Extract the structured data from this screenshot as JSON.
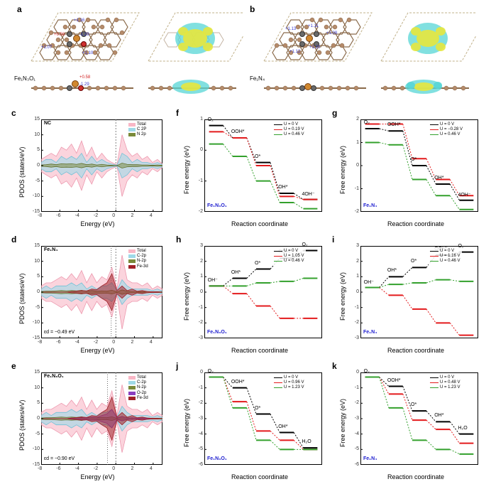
{
  "layout": {
    "figure_width": 692,
    "figure_height": 688,
    "background": "#ffffff",
    "panel_label_fontsize": 12,
    "axis_label_fontsize": 9,
    "tick_fontsize": 7
  },
  "global_colors": {
    "black": "#000000",
    "red": "#e31a1c",
    "green": "#33a02c",
    "blue": "#1f5fb8",
    "pink_fill": "#f9b7c6",
    "cyan_fill": "#9fd9e8",
    "olive_fill": "#7a8a3a",
    "purple": "#8a3fbf",
    "maroon": "#a02028"
  },
  "panel_a": {
    "label": "a",
    "model": "Fe₁N₃O₁",
    "charges": [
      {
        "v": "+1.16",
        "color": "#3a3ad0"
      },
      {
        "v": "+0.58",
        "color": "#d02020"
      },
      {
        "v": "-1.29",
        "color": "#3a3ad0"
      },
      {
        "v": "+1.07",
        "color": "#3a3ad0"
      },
      {
        "v": "+1.10",
        "color": "#3a3ad0"
      }
    ],
    "side_charges": [
      {
        "v": "+0.58",
        "color": "#d02020"
      },
      {
        "v": "-1.29",
        "color": "#3a3ad0"
      }
    ],
    "atom_colors": {
      "C": "#b58b6b",
      "N": "#6a6a6a",
      "O": "#d03030",
      "Fe": "#d08830"
    },
    "cdd_colors": {
      "pos": "#e7e73d",
      "neg": "#57d6d6"
    }
  },
  "panel_b": {
    "label": "b",
    "model": "Fe₁N₄",
    "charges": [
      {
        "v": "+1.13",
        "color": "#3a3ad0"
      },
      {
        "v": "+1.11",
        "color": "#3a3ad0"
      },
      {
        "v": "+1.09",
        "color": "#3a3ad0"
      },
      {
        "v": "+1.20",
        "color": "#3a3ad0"
      },
      {
        "v": "+1.12",
        "color": "#3a3ad0"
      }
    ],
    "atom_colors": {
      "C": "#b58b6b",
      "N": "#6a6a6a",
      "Fe": "#d08830"
    },
    "cdd_colors": {
      "pos": "#e7e73d",
      "neg": "#57d6d6"
    }
  },
  "panel_c": {
    "label": "c",
    "title": "NC",
    "xlabel": "Energy (eV)",
    "ylabel": "PDOS (states/eV)",
    "xlim": [
      -8,
      5
    ],
    "xtick_step": 2,
    "ylim": [
      -15,
      15
    ],
    "ytick_step": 5,
    "legend": [
      {
        "name": "Total",
        "color": "#f9b7c6"
      },
      {
        "name": "C 2P",
        "color": "#9fd9e8"
      },
      {
        "name": "N 2p",
        "color": "#7a8a3a"
      }
    ],
    "curves": {
      "Total_up": [
        2,
        3,
        4,
        3,
        6,
        5,
        7,
        4,
        8,
        3,
        6,
        2,
        4,
        2,
        1,
        0.2,
        10,
        5,
        3,
        4,
        2,
        3,
        1,
        2,
        0.5
      ],
      "Total_dn": [
        -2,
        -3,
        -4,
        -3,
        -6,
        -5,
        -7,
        -4,
        -8,
        -3,
        -6,
        -2,
        -4,
        -2,
        -1,
        -0.2,
        -10,
        -5,
        -3,
        -4,
        -2,
        -3,
        -1,
        -2,
        -0.5
      ],
      "C_up": [
        1,
        2,
        2,
        1,
        3,
        2,
        3,
        2,
        4,
        1,
        3,
        1,
        2,
        1,
        0.5,
        0.1,
        4,
        3,
        1,
        2,
        1,
        1,
        0.5,
        1,
        0.3
      ],
      "C_dn": [
        -1,
        -2,
        -2,
        -1,
        -3,
        -2,
        -3,
        -2,
        -4,
        -1,
        -3,
        -1,
        -2,
        -1,
        -0.5,
        -0.1,
        -4,
        -3,
        -1,
        -2,
        -1,
        -1,
        -0.5,
        -1,
        -0.3
      ],
      "N_up": [
        0.2,
        0.3,
        0.5,
        0.3,
        0.6,
        0.5,
        0.6,
        0.4,
        0.7,
        0.3,
        0.5,
        0.2,
        0.4,
        0.2,
        0.1,
        0,
        0.8,
        0.4,
        0.3,
        0.3,
        0.2,
        0.2,
        0.1,
        0.2,
        0.1
      ],
      "N_dn": [
        -0.2,
        -0.3,
        -0.5,
        -0.3,
        -0.6,
        -0.5,
        -0.6,
        -0.4,
        -0.7,
        -0.3,
        -0.5,
        -0.2,
        -0.4,
        -0.2,
        -0.1,
        0,
        -0.8,
        -0.4,
        -0.3,
        -0.3,
        -0.2,
        -0.2,
        -0.1,
        -0.2,
        -0.1
      ]
    },
    "x_samples": [
      -8,
      -7.46,
      -6.92,
      -6.38,
      -5.83,
      -5.29,
      -4.75,
      -4.21,
      -3.67,
      -3.12,
      -2.58,
      -2.04,
      -1.5,
      -0.96,
      -0.42,
      0.12,
      0.67,
      1.21,
      1.75,
      2.29,
      2.83,
      3.38,
      3.92,
      4.46,
      5
    ]
  },
  "panel_d": {
    "label": "d",
    "title": "Fe₁N₄",
    "xlabel": "Energy (eV)",
    "ylabel": "PDOS (states/eV)",
    "xlim": [
      -8,
      5
    ],
    "xtick_step": 2,
    "ylim": [
      -15,
      15
    ],
    "ytick_step": 5,
    "ed_note": "εd = −0.49 eV",
    "ed_line_x": -0.49,
    "legend": [
      {
        "name": "Total",
        "color": "#f9b7c6"
      },
      {
        "name": "C-2p",
        "color": "#9fd9e8"
      },
      {
        "name": "N-2p",
        "color": "#7a8a3a"
      },
      {
        "name": "Fe-3d",
        "color": "#a02028"
      }
    ],
    "curves": {
      "Total_up": [
        2,
        3,
        3,
        4,
        5,
        4,
        6,
        4,
        7,
        3,
        6,
        3,
        5,
        4,
        8,
        1,
        12,
        4,
        3,
        3,
        2,
        3,
        1,
        2,
        1
      ],
      "Total_dn": [
        -2,
        -3,
        -3,
        -4,
        -5,
        -4,
        -6,
        -4,
        -7,
        -3,
        -6,
        -3,
        -5,
        -4,
        -8,
        -1,
        -12,
        -4,
        -3,
        -3,
        -2,
        -3,
        -1,
        -2,
        -1
      ],
      "C_up": [
        1,
        2,
        1,
        2,
        2,
        2,
        3,
        2,
        3,
        1,
        2,
        1,
        2,
        2,
        3,
        0.5,
        4,
        2,
        1,
        1,
        1,
        1,
        0.5,
        1,
        0.3
      ],
      "C_dn": [
        -1,
        -2,
        -1,
        -2,
        -2,
        -2,
        -3,
        -2,
        -3,
        -1,
        -2,
        -1,
        -2,
        -2,
        -3,
        -0.5,
        -4,
        -2,
        -1,
        -1,
        -1,
        -1,
        -0.5,
        -1,
        -0.3
      ],
      "N_up": [
        0.2,
        0.3,
        0.3,
        0.4,
        0.5,
        0.4,
        0.5,
        0.4,
        0.6,
        0.3,
        0.5,
        0.3,
        0.4,
        0.3,
        0.6,
        0.1,
        0.7,
        0.3,
        0.2,
        0.2,
        0.2,
        0.2,
        0.1,
        0.1,
        0.1
      ],
      "N_dn": [
        -0.2,
        -0.3,
        -0.3,
        -0.4,
        -0.5,
        -0.4,
        -0.5,
        -0.4,
        -0.6,
        -0.3,
        -0.5,
        -0.3,
        -0.4,
        -0.3,
        -0.6,
        -0.1,
        -0.7,
        -0.3,
        -0.2,
        -0.2,
        -0.2,
        -0.2,
        -0.1,
        -0.1,
        -0.1
      ],
      "Fe_up": [
        0,
        0,
        0,
        0,
        0,
        0,
        0.2,
        0.3,
        0.5,
        0.4,
        1,
        0.8,
        2,
        3,
        6,
        0.5,
        2,
        0.5,
        1,
        0.3,
        0.5,
        0.2,
        0.1,
        0.1,
        0
      ],
      "Fe_dn": [
        0,
        0,
        0,
        0,
        0,
        0,
        -0.2,
        -0.3,
        -0.5,
        -0.4,
        -1,
        -0.8,
        -2,
        -3,
        -6,
        -0.5,
        -2,
        -0.5,
        -1,
        -0.3,
        -0.5,
        -0.2,
        -0.1,
        -0.1,
        0
      ]
    },
    "x_samples": [
      -8,
      -7.46,
      -6.92,
      -6.38,
      -5.83,
      -5.29,
      -4.75,
      -4.21,
      -3.67,
      -3.12,
      -2.58,
      -2.04,
      -1.5,
      -0.96,
      -0.42,
      0.12,
      0.67,
      1.21,
      1.75,
      2.29,
      2.83,
      3.38,
      3.92,
      4.46,
      5
    ]
  },
  "panel_e": {
    "label": "e",
    "title": "Fe₁N₃O₁",
    "xlabel": "Energy (eV)",
    "ylabel": "PDOS (states/eV)",
    "xlim": [
      -8,
      5
    ],
    "xtick_step": 2,
    "ylim": [
      -15,
      15
    ],
    "ytick_step": 5,
    "ed_note": "εd = −0.90 eV",
    "ed_line_x": -0.9,
    "legend": [
      {
        "name": "Total",
        "color": "#f9b7c6"
      },
      {
        "name": "C-2p",
        "color": "#9fd9e8"
      },
      {
        "name": "N-2p",
        "color": "#7a8a3a"
      },
      {
        "name": "O-2p",
        "color": "#8a3fbf"
      },
      {
        "name": "Fe-3d",
        "color": "#a02028"
      }
    ],
    "curves": {
      "Total_up": [
        2,
        3,
        3,
        4,
        5,
        4,
        6,
        4,
        7,
        3,
        6,
        3,
        5,
        4,
        9,
        1,
        11,
        4,
        3,
        3,
        2,
        3,
        1,
        2,
        1
      ],
      "Total_dn": [
        -2,
        -3,
        -3,
        -4,
        -5,
        -4,
        -6,
        -4,
        -7,
        -3,
        -6,
        -3,
        -5,
        -4,
        -9,
        -1,
        -11,
        -4,
        -3,
        -3,
        -2,
        -3,
        -1,
        -2,
        -1
      ],
      "C_up": [
        1,
        2,
        1,
        2,
        2,
        2,
        3,
        2,
        3,
        1,
        2,
        1,
        2,
        2,
        3,
        0.5,
        4,
        2,
        1,
        1,
        1,
        1,
        0.5,
        1,
        0.3
      ],
      "C_dn": [
        -1,
        -2,
        -1,
        -2,
        -2,
        -2,
        -3,
        -2,
        -3,
        -1,
        -2,
        -1,
        -2,
        -2,
        -3,
        -0.5,
        -4,
        -2,
        -1,
        -1,
        -1,
        -1,
        -0.5,
        -1,
        -0.3
      ],
      "N_up": [
        0.2,
        0.3,
        0.3,
        0.4,
        0.5,
        0.4,
        0.5,
        0.4,
        0.6,
        0.3,
        0.5,
        0.3,
        0.4,
        0.3,
        0.6,
        0.1,
        0.7,
        0.3,
        0.2,
        0.2,
        0.2,
        0.2,
        0.1,
        0.1,
        0.1
      ],
      "N_dn": [
        -0.2,
        -0.3,
        -0.3,
        -0.4,
        -0.5,
        -0.4,
        -0.5,
        -0.4,
        -0.6,
        -0.3,
        -0.5,
        -0.3,
        -0.4,
        -0.3,
        -0.6,
        -0.1,
        -0.7,
        -0.3,
        -0.2,
        -0.2,
        -0.2,
        -0.2,
        -0.1,
        -0.1,
        -0.1
      ],
      "O_up": [
        0,
        0,
        0,
        0,
        0,
        0,
        0.1,
        0.2,
        0.3,
        0.2,
        0.5,
        0.4,
        1,
        1.5,
        3,
        0.3,
        0.7,
        0.2,
        0.3,
        0.1,
        0.2,
        0.1,
        0,
        0,
        0
      ],
      "O_dn": [
        0,
        0,
        0,
        0,
        0,
        0,
        -0.1,
        -0.2,
        -0.3,
        -0.2,
        -0.5,
        -0.4,
        -1,
        -1.5,
        -3,
        -0.3,
        -0.7,
        -0.2,
        -0.3,
        -0.1,
        -0.2,
        -0.1,
        0,
        0,
        0
      ],
      "Fe_up": [
        0,
        0,
        0,
        0,
        0,
        0,
        0.2,
        0.3,
        0.5,
        0.4,
        1,
        0.8,
        2,
        3,
        7,
        0.5,
        2,
        0.5,
        1,
        0.3,
        0.5,
        0.2,
        0.1,
        0.1,
        0
      ],
      "Fe_dn": [
        0,
        0,
        0,
        0,
        0,
        0,
        -0.2,
        -0.3,
        -0.5,
        -0.4,
        -1,
        -0.8,
        -2,
        -3,
        -7,
        -0.5,
        -2,
        -0.5,
        -1,
        -0.3,
        -0.5,
        -0.2,
        -0.1,
        -0.1,
        0
      ]
    },
    "x_samples": [
      -8,
      -7.46,
      -6.92,
      -6.38,
      -5.83,
      -5.29,
      -4.75,
      -4.21,
      -3.67,
      -3.12,
      -2.58,
      -2.04,
      -1.5,
      -0.96,
      -0.42,
      0.12,
      0.67,
      1.21,
      1.75,
      2.29,
      2.83,
      3.38,
      3.92,
      4.46,
      5
    ]
  },
  "free_common": {
    "xlabel": "Reaction coordinate",
    "ylabel": "Free energy (eV)",
    "steps_orr": [
      "O₂",
      "OOH*",
      "O*",
      "OH*",
      "4OH⁻"
    ],
    "steps_oer": [
      "OH⁻",
      "OH*",
      "O*",
      "OOH*",
      "O₂"
    ],
    "steps_orr_h2o": [
      "O₂",
      "OOH*",
      "O*",
      "OH*",
      "H₂O"
    ],
    "step_line_width": 2,
    "dash_riser": true
  },
  "panel_f": {
    "label": "f",
    "tag": "Fe₁N₃O₁",
    "ylim": [
      -2,
      1
    ],
    "ytick_step": 1,
    "legend": [
      {
        "name": "U = 0 V",
        "color": "#000000"
      },
      {
        "name": "U = 0.19 V",
        "color": "#e31a1c"
      },
      {
        "name": "U = 0.46 V",
        "color": "#33a02c"
      }
    ],
    "series": {
      "U0": [
        0.8,
        0.4,
        -0.4,
        -1.4,
        -1.6
      ],
      "U019": [
        0.6,
        0.4,
        -0.5,
        -1.5,
        -1.6
      ],
      "U046": [
        0.2,
        -0.2,
        -1.0,
        -1.7,
        -1.9
      ]
    },
    "step_labels": "steps_orr"
  },
  "panel_g": {
    "label": "g",
    "tag": "Fe₁N₄",
    "ylim": [
      -2,
      2
    ],
    "ytick_step": 1,
    "legend": [
      {
        "name": "U = 0 V",
        "color": "#000000"
      },
      {
        "name": "U = −0.28 V",
        "color": "#e31a1c"
      },
      {
        "name": "U = 0.46 V",
        "color": "#33a02c"
      }
    ],
    "series": {
      "U0": [
        1.6,
        1.5,
        0.0,
        -0.8,
        -1.5
      ],
      "Um028": [
        1.8,
        1.8,
        0.3,
        -0.6,
        -1.3
      ],
      "U046": [
        1.0,
        0.9,
        -0.6,
        -1.3,
        -1.9
      ]
    },
    "step_labels": "steps_orr"
  },
  "panel_h": {
    "label": "h",
    "tag": "Fe₁N₃O₁",
    "ylim": [
      -3,
      3
    ],
    "ytick_step": 1,
    "legend": [
      {
        "name": "U = 0 V",
        "color": "#000000"
      },
      {
        "name": "U = 1.05 V",
        "color": "#e31a1c"
      },
      {
        "name": "U = 0.46 V",
        "color": "#33a02c"
      }
    ],
    "series": {
      "U0": [
        0.4,
        0.9,
        1.5,
        2.2,
        2.7
      ],
      "U105": [
        0.4,
        -0.1,
        -0.9,
        -1.7,
        -1.7
      ],
      "U046": [
        0.4,
        0.4,
        0.6,
        0.7,
        0.9
      ]
    },
    "step_labels": "steps_oer"
  },
  "panel_i": {
    "label": "i",
    "tag": "Fe₁N₄",
    "ylim": [
      -3,
      3
    ],
    "ytick_step": 1,
    "legend": [
      {
        "name": "U = 0 V",
        "color": "#000000"
      },
      {
        "name": "U = 1.16 V",
        "color": "#e31a1c"
      },
      {
        "name": "U = 0.46 V",
        "color": "#33a02c"
      }
    ],
    "series": {
      "U0": [
        0.3,
        1.0,
        1.6,
        2.4,
        2.6
      ],
      "U116": [
        0.3,
        -0.2,
        -1.1,
        -2.0,
        -2.8
      ],
      "U046": [
        0.3,
        0.5,
        0.6,
        0.8,
        0.7
      ]
    },
    "step_labels": "steps_oer"
  },
  "panel_j": {
    "label": "j",
    "tag": "Fe₁N₃O₁",
    "ylim": [
      -6,
      0
    ],
    "ytick_step": 1,
    "legend": [
      {
        "name": "U = 0 V",
        "color": "#000000"
      },
      {
        "name": "U = 0.96 V",
        "color": "#e31a1c"
      },
      {
        "name": "U = 1.23 V",
        "color": "#33a02c"
      }
    ],
    "series": {
      "U0": [
        -0.3,
        -1.0,
        -2.7,
        -3.9,
        -4.9
      ],
      "U096": [
        -0.3,
        -1.9,
        -3.8,
        -4.4,
        -5.0
      ],
      "U123": [
        -0.3,
        -2.3,
        -4.4,
        -5.0,
        -5.0
      ]
    },
    "step_labels": "steps_orr_h2o"
  },
  "panel_k": {
    "label": "k",
    "tag": "Fe₁N₄",
    "ylim": [
      -6,
      0
    ],
    "ytick_step": 1,
    "legend": [
      {
        "name": "U = 0 V",
        "color": "#000000"
      },
      {
        "name": "U = 0.48 V",
        "color": "#e31a1c"
      },
      {
        "name": "U = 1.23 V",
        "color": "#33a02c"
      }
    ],
    "series": {
      "U0": [
        -0.3,
        -0.9,
        -2.5,
        -3.2,
        -4.0
      ],
      "U048": [
        -0.3,
        -1.4,
        -3.1,
        -3.7,
        -4.6
      ],
      "U123": [
        -0.3,
        -2.3,
        -4.4,
        -5.0,
        -5.3
      ]
    },
    "step_labels": "steps_orr_h2o"
  }
}
